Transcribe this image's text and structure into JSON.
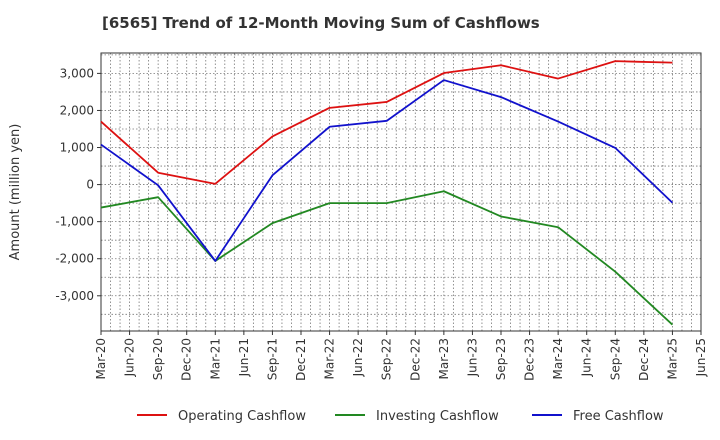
{
  "chart_data": {
    "type": "line",
    "title": "[6565]  Trend of 12-Month Moving Sum of Cashflows",
    "xlabel": "",
    "ylabel": "Amount (million yen)",
    "ylim": [
      -3950,
      3550
    ],
    "y_ticks": [
      -3000,
      -2000,
      -1000,
      0,
      1000,
      2000,
      3000
    ],
    "y_tick_labels": [
      "-3,000",
      "-2,000",
      "-1,000",
      "0",
      "1,000",
      "2,000",
      "3,000"
    ],
    "x_tick_labels": [
      "Mar-20",
      "Jun-20",
      "Sep-20",
      "Dec-20",
      "Mar-21",
      "Jun-21",
      "Sep-21",
      "Dec-21",
      "Mar-22",
      "Jun-22",
      "Sep-22",
      "Dec-22",
      "Mar-23",
      "Jun-23",
      "Sep-23",
      "Dec-23",
      "Mar-24",
      "Jun-24",
      "Sep-24",
      "Dec-24",
      "Mar-25",
      "Jun-25"
    ],
    "x": [
      "Mar-20",
      "Sep-20",
      "Mar-21",
      "Sep-21",
      "Mar-22",
      "Sep-22",
      "Mar-23",
      "Sep-23",
      "Mar-24",
      "Sep-24",
      "Mar-25"
    ],
    "grid": true,
    "legend_position": "bottom",
    "series": [
      {
        "name": "Operating Cashflow",
        "color": "#dd1111",
        "values": [
          1700,
          320,
          20,
          1300,
          2070,
          2230,
          3010,
          3220,
          2860,
          3330,
          3290
        ]
      },
      {
        "name": "Investing Cashflow",
        "color": "#228822",
        "values": [
          -620,
          -340,
          -2060,
          -1040,
          -500,
          -500,
          -180,
          -860,
          -1150,
          -2350,
          -3780
        ]
      },
      {
        "name": "Free Cashflow",
        "color": "#1111cc",
        "values": [
          1080,
          -20,
          -2060,
          250,
          1560,
          1720,
          2820,
          2360,
          1700,
          990,
          -490
        ]
      }
    ]
  }
}
